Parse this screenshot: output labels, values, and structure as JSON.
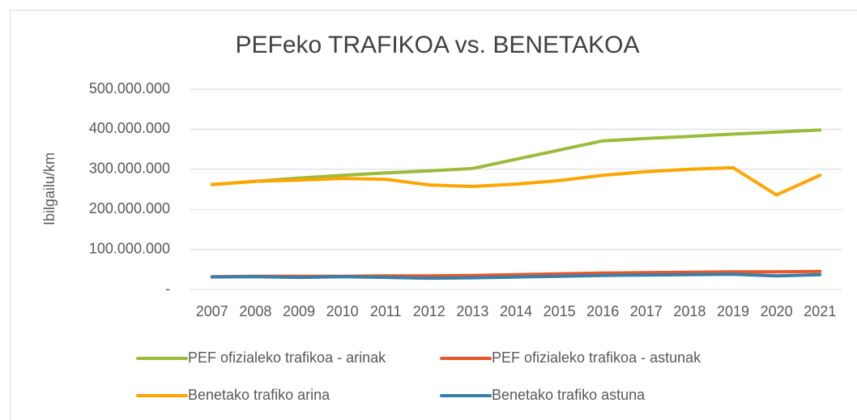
{
  "chart_data": {
    "type": "line",
    "title": "PEFeko TRAFIKOA vs. BENETAKOA",
    "y_label": "Ibilgailu/km",
    "categories": [
      "2007",
      "2008",
      "2009",
      "2010",
      "2011",
      "2012",
      "2013",
      "2014",
      "2015",
      "2016",
      "2017",
      "2018",
      "2019",
      "2020",
      "2021"
    ],
    "series": [
      {
        "name": "PEF ofizialeko trafikoa - arinak",
        "color": "#9bbb3b",
        "values": [
          262000000,
          270000000,
          278000000,
          285000000,
          291000000,
          296000000,
          302000000,
          325000000,
          348000000,
          371000000,
          377000000,
          382000000,
          388000000,
          393000000,
          398000000
        ]
      },
      {
        "name": "PEF ofizialeko trafikoa - astunak",
        "color": "#e8562a",
        "values": [
          32000000,
          33000000,
          33000000,
          33000000,
          34000000,
          34000000,
          35000000,
          37000000,
          39000000,
          41000000,
          42000000,
          43000000,
          44000000,
          44000000,
          45000000
        ]
      },
      {
        "name": "Benetako trafiko arina",
        "color": "#ffa500",
        "values": [
          262000000,
          270000000,
          273000000,
          277000000,
          275000000,
          261000000,
          257000000,
          263000000,
          272000000,
          285000000,
          294000000,
          300000000,
          304000000,
          236000000,
          285000000
        ]
      },
      {
        "name": "Benetako trafiko astuna",
        "color": "#3a7fa8",
        "values": [
          31000000,
          32000000,
          30000000,
          32000000,
          30000000,
          28000000,
          29000000,
          31000000,
          33000000,
          35000000,
          36000000,
          37000000,
          38000000,
          34000000,
          37000000
        ]
      }
    ],
    "ylim": [
      0,
      500000000
    ],
    "yticks": [
      {
        "value": 0,
        "label": "-"
      },
      {
        "value": 100000000,
        "label": "100.000.000"
      },
      {
        "value": 200000000,
        "label": "200.000.000"
      },
      {
        "value": 300000000,
        "label": "300.000.000"
      },
      {
        "value": 400000000,
        "label": "400.000.000"
      },
      {
        "value": 500000000,
        "label": "500.000.000"
      }
    ],
    "grid": true
  }
}
